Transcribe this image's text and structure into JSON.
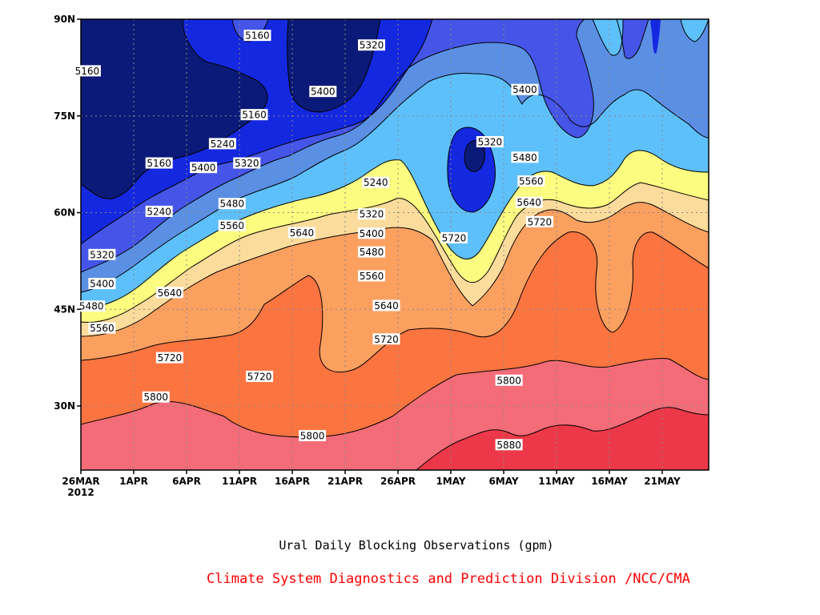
{
  "chart_data": {
    "type": "contour",
    "caption": "Ural Daily Blocking Observations (gpm)",
    "credit": "Climate System Diagnostics and Prediction Division /NCC/CMA",
    "x_ticks": [
      {
        "label": "26MAR",
        "sublabel": "2012"
      },
      {
        "label": "1APR"
      },
      {
        "label": "6APR"
      },
      {
        "label": "11APR"
      },
      {
        "label": "16APR"
      },
      {
        "label": "21APR"
      },
      {
        "label": "26APR"
      },
      {
        "label": "1MAY"
      },
      {
        "label": "6MAY"
      },
      {
        "label": "11MAY"
      },
      {
        "label": "16MAY"
      },
      {
        "label": "21MAY"
      }
    ],
    "y_ticks": [
      "30N",
      "45N",
      "60N",
      "75N",
      "90N"
    ],
    "levels": [
      5160,
      5240,
      5320,
      5400,
      5480,
      5560,
      5640,
      5720,
      5800,
      5880
    ],
    "fill_colors": [
      "#0b1a78",
      "#1428e0",
      "#4555e8",
      "#5a8fe4",
      "#5ec0fb",
      "#fcfc80",
      "#fcdc9c",
      "#fca060",
      "#fc7440",
      "#f46c78",
      "#ec3848"
    ],
    "contour_labels": [
      {
        "text": "5160",
        "day": 0.6,
        "lat": 82.0
      },
      {
        "text": "5160",
        "day": 16.7,
        "lat": 87.5
      },
      {
        "text": "5160",
        "day": 16.4,
        "lat": 75.2
      },
      {
        "text": "5160",
        "day": 7.4,
        "lat": 67.7
      },
      {
        "text": "5240",
        "day": 7.4,
        "lat": 60.2
      },
      {
        "text": "5240",
        "day": 13.4,
        "lat": 70.7
      },
      {
        "text": "5240",
        "day": 27.9,
        "lat": 64.7
      },
      {
        "text": "5320",
        "day": 2.0,
        "lat": 53.5
      },
      {
        "text": "5320",
        "day": 15.7,
        "lat": 67.7
      },
      {
        "text": "5320",
        "day": 27.5,
        "lat": 86.0
      },
      {
        "text": "5320",
        "day": 27.5,
        "lat": 59.8
      },
      {
        "text": "5320",
        "day": 38.7,
        "lat": 71.0
      },
      {
        "text": "5400",
        "day": 2.0,
        "lat": 49.0
      },
      {
        "text": "5400",
        "day": 11.6,
        "lat": 67.0
      },
      {
        "text": "5400",
        "day": 22.9,
        "lat": 78.8
      },
      {
        "text": "5400",
        "day": 27.5,
        "lat": 56.8
      },
      {
        "text": "5400",
        "day": 42.0,
        "lat": 79.1
      },
      {
        "text": "5480",
        "day": 1.0,
        "lat": 45.5
      },
      {
        "text": "5480",
        "day": 14.3,
        "lat": 61.4
      },
      {
        "text": "5480",
        "day": 27.5,
        "lat": 53.9
      },
      {
        "text": "5480",
        "day": 42.0,
        "lat": 68.6
      },
      {
        "text": "5560",
        "day": 2.0,
        "lat": 42.1
      },
      {
        "text": "5560",
        "day": 14.3,
        "lat": 58.0
      },
      {
        "text": "5560",
        "day": 27.5,
        "lat": 50.2
      },
      {
        "text": "5560",
        "day": 42.6,
        "lat": 64.9
      },
      {
        "text": "5640",
        "day": 8.4,
        "lat": 47.6
      },
      {
        "text": "5640",
        "day": 20.9,
        "lat": 56.9
      },
      {
        "text": "5640",
        "day": 28.9,
        "lat": 45.6
      },
      {
        "text": "5640",
        "day": 42.4,
        "lat": 61.6
      },
      {
        "text": "5720",
        "day": 8.4,
        "lat": 37.5
      },
      {
        "text": "5720",
        "day": 16.9,
        "lat": 34.6
      },
      {
        "text": "5720",
        "day": 28.9,
        "lat": 40.4
      },
      {
        "text": "5720",
        "day": 35.3,
        "lat": 56.1
      },
      {
        "text": "5720",
        "day": 43.4,
        "lat": 58.6
      },
      {
        "text": "5800",
        "day": 7.1,
        "lat": 31.4
      },
      {
        "text": "5800",
        "day": 21.9,
        "lat": 25.4
      },
      {
        "text": "5800",
        "day": 40.5,
        "lat": 34.0
      },
      {
        "text": "5880",
        "day": 40.5,
        "lat": 24.0
      }
    ],
    "grid": true
  }
}
